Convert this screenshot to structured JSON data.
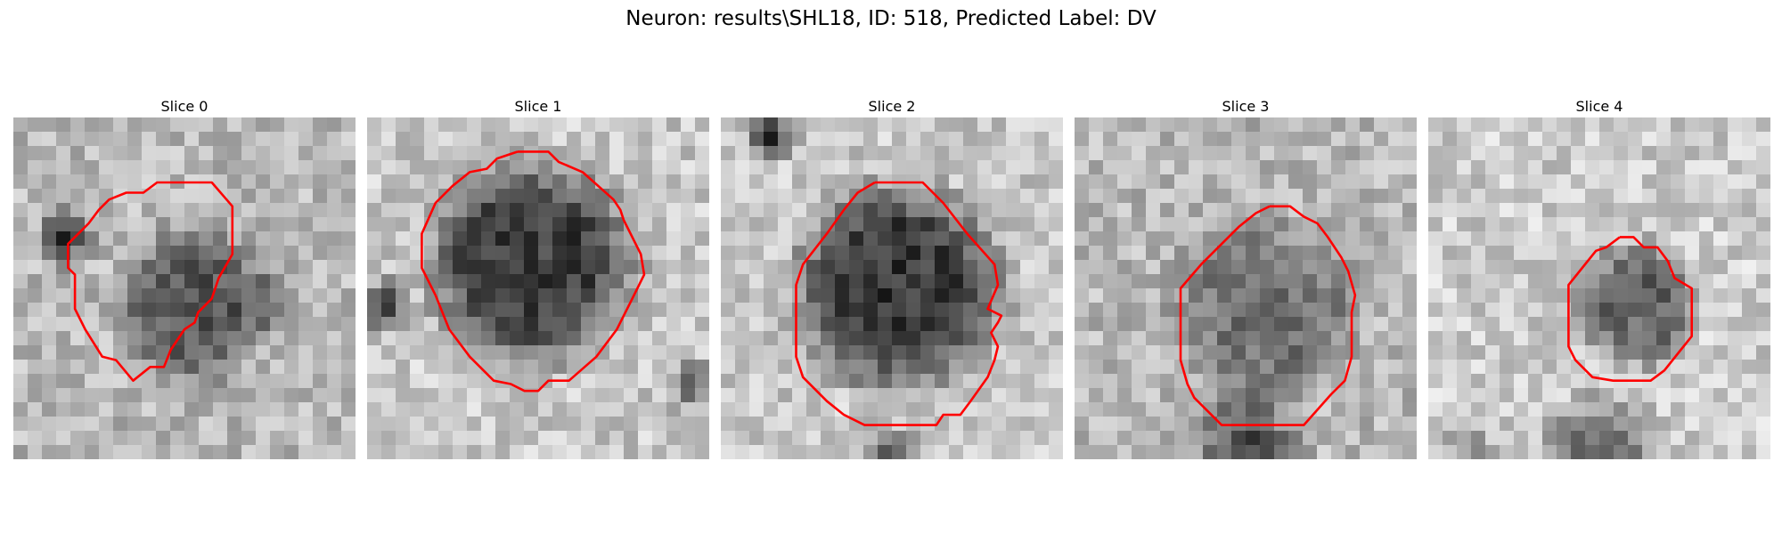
{
  "figure": {
    "title": "Neuron: results\\SHL18, ID: 518, Predicted Label: DV"
  },
  "contour_color": "#ff0000",
  "panels": [
    {
      "title": "Slice 0"
    },
    {
      "title": "Slice 1"
    },
    {
      "title": "Slice 2"
    },
    {
      "title": "Slice 3"
    },
    {
      "title": "Slice 4"
    }
  ]
}
